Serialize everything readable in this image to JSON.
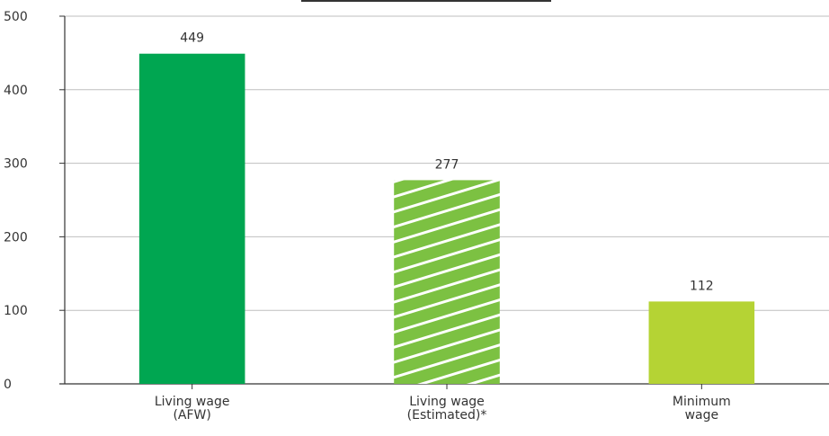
{
  "chart_data": {
    "type": "bar",
    "categories": [
      [
        "Living wage",
        "(AFW)"
      ],
      [
        "Living wage",
        "(Estimated)*"
      ],
      [
        "Minimum",
        "wage"
      ]
    ],
    "values": [
      449,
      277,
      112
    ],
    "data_labels": [
      "449",
      "277",
      "112"
    ],
    "colors": [
      "#00a651",
      "#7cc142",
      "#b5d334"
    ],
    "hatched": [
      false,
      true,
      false
    ],
    "ylim": [
      0,
      500
    ],
    "yticks": [
      0,
      100,
      200,
      300,
      400,
      500
    ],
    "ytick_labels": [
      "0",
      "100",
      "200",
      "300",
      "400",
      "500"
    ],
    "grid": true,
    "legend": "none",
    "title": "",
    "xlabel": "",
    "ylabel": ""
  }
}
